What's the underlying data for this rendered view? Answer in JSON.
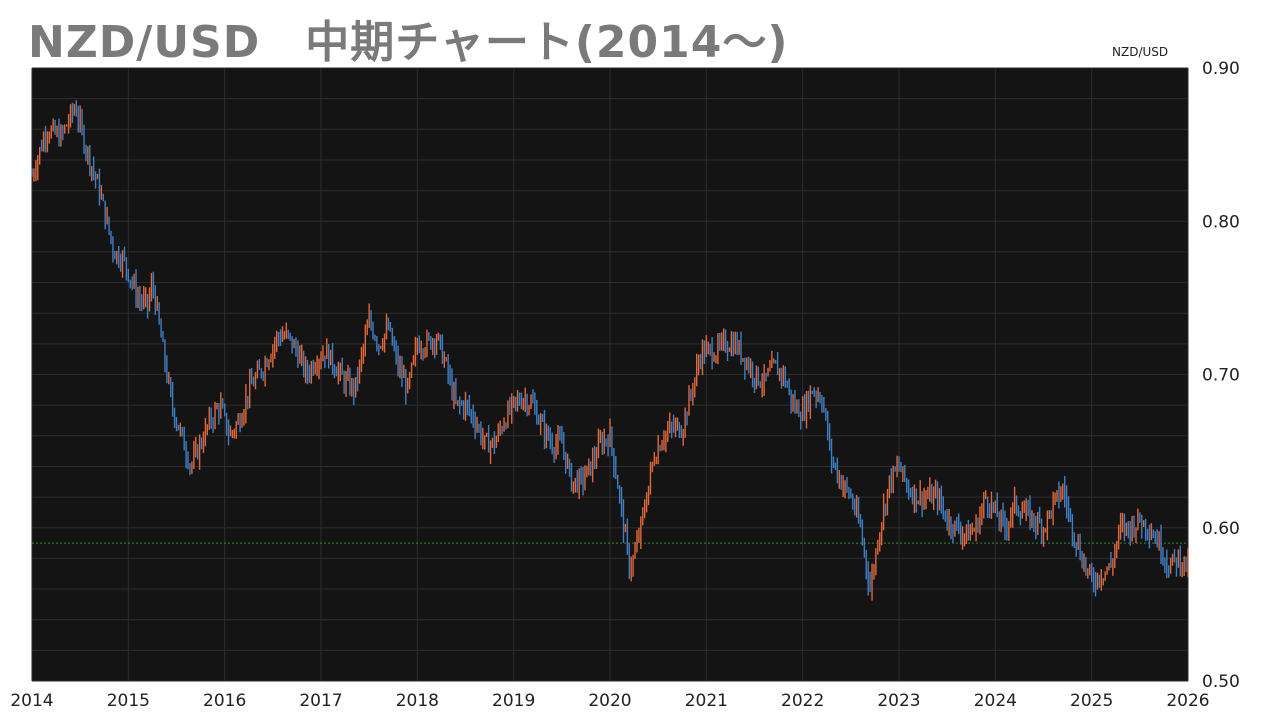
{
  "title": "NZD/USD　中期チャート(2014～)",
  "chart_data": {
    "type": "line",
    "title": "NZD/USD　中期チャート(2014～)",
    "series_label": "NZD/USD",
    "xlabel": "",
    "ylabel": "",
    "x_ticks": [
      "2014",
      "2015",
      "2016",
      "2017",
      "2018",
      "2019",
      "2020",
      "2021",
      "2022",
      "2023",
      "2024",
      "2025",
      "2026"
    ],
    "y_ticks": [
      "0.50",
      "0.60",
      "0.70",
      "0.80",
      "0.90"
    ],
    "xlim": [
      2014,
      2026
    ],
    "ylim": [
      0.5,
      0.9
    ],
    "grid": true,
    "reference_line": 0.59,
    "colors": {
      "background": "#141414",
      "up": "#e0683a",
      "down": "#3f7fc4",
      "grid": "#2c2c2c",
      "reference": "#2e8b2e"
    },
    "series": [
      {
        "name": "NZD/USD",
        "x": [
          2014.0,
          2014.15,
          2014.3,
          2014.45,
          2014.55,
          2014.7,
          2014.85,
          2014.95,
          2015.1,
          2015.2,
          2015.25,
          2015.35,
          2015.45,
          2015.55,
          2015.65,
          2015.75,
          2015.85,
          2015.95,
          2016.05,
          2016.15,
          2016.25,
          2016.4,
          2016.55,
          2016.65,
          2016.75,
          2016.85,
          2016.95,
          2017.05,
          2017.15,
          2017.25,
          2017.35,
          2017.5,
          2017.6,
          2017.7,
          2017.8,
          2017.9,
          2018.0,
          2018.1,
          2018.2,
          2018.3,
          2018.4,
          2018.5,
          2018.6,
          2018.7,
          2018.8,
          2018.9,
          2019.0,
          2019.1,
          2019.2,
          2019.3,
          2019.4,
          2019.5,
          2019.6,
          2019.7,
          2019.8,
          2019.9,
          2020.0,
          2020.1,
          2020.2,
          2020.25,
          2020.35,
          2020.45,
          2020.55,
          2020.65,
          2020.75,
          2020.85,
          2020.95,
          2021.1,
          2021.2,
          2021.3,
          2021.4,
          2021.5,
          2021.6,
          2021.7,
          2021.8,
          2021.9,
          2022.0,
          2022.1,
          2022.2,
          2022.3,
          2022.4,
          2022.5,
          2022.6,
          2022.7,
          2022.8,
          2022.9,
          2023.0,
          2023.1,
          2023.2,
          2023.3,
          2023.4,
          2023.5,
          2023.6,
          2023.7,
          2023.8,
          2023.9,
          2024.0,
          2024.1,
          2024.2,
          2024.3,
          2024.4,
          2024.5,
          2024.6,
          2024.7,
          2024.8,
          2024.9,
          2025.0,
          2025.1,
          2025.2,
          2025.3,
          2025.4,
          2025.5,
          2025.6,
          2025.7,
          2025.8,
          2025.9,
          2026.0
        ],
        "values": [
          0.83,
          0.86,
          0.855,
          0.875,
          0.85,
          0.82,
          0.78,
          0.775,
          0.75,
          0.745,
          0.76,
          0.72,
          0.68,
          0.66,
          0.64,
          0.655,
          0.67,
          0.68,
          0.66,
          0.67,
          0.69,
          0.705,
          0.725,
          0.725,
          0.715,
          0.7,
          0.71,
          0.715,
          0.705,
          0.695,
          0.69,
          0.735,
          0.72,
          0.73,
          0.705,
          0.69,
          0.72,
          0.72,
          0.725,
          0.705,
          0.68,
          0.68,
          0.67,
          0.655,
          0.655,
          0.67,
          0.68,
          0.685,
          0.68,
          0.665,
          0.655,
          0.655,
          0.63,
          0.63,
          0.64,
          0.655,
          0.66,
          0.62,
          0.575,
          0.58,
          0.61,
          0.645,
          0.66,
          0.665,
          0.665,
          0.69,
          0.715,
          0.715,
          0.72,
          0.72,
          0.71,
          0.7,
          0.695,
          0.705,
          0.7,
          0.68,
          0.675,
          0.69,
          0.685,
          0.645,
          0.63,
          0.62,
          0.6,
          0.56,
          0.6,
          0.63,
          0.64,
          0.625,
          0.62,
          0.62,
          0.62,
          0.605,
          0.6,
          0.595,
          0.6,
          0.62,
          0.61,
          0.6,
          0.615,
          0.61,
          0.605,
          0.6,
          0.615,
          0.625,
          0.6,
          0.58,
          0.565,
          0.57,
          0.575,
          0.6,
          0.6,
          0.605,
          0.6,
          0.59,
          0.575,
          0.58,
          0.575
        ]
      }
    ]
  }
}
